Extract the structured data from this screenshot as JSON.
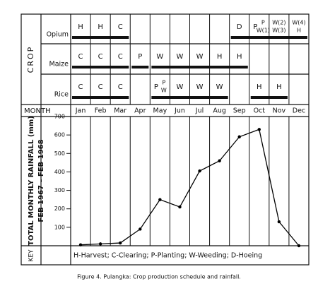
{
  "schedule": {
    "axis_label": "CROP",
    "crops": [
      {
        "name": "Opium",
        "cells": [
          [
            [
              "H"
            ]
          ],
          [
            [
              "H"
            ]
          ],
          [
            [
              "C"
            ]
          ],
          null,
          null,
          null,
          null,
          null,
          [
            [
              "D"
            ]
          ],
          [
            [
              "P"
            ],
            [
              "P",
              "W(1)"
            ]
          ],
          [
            [
              "W(2)",
              "W(3)"
            ]
          ],
          [
            [
              "W(4)",
              "H"
            ]
          ]
        ],
        "bars": [
          [
            "Jan",
            "Mar"
          ],
          [
            "Sep",
            "Dec"
          ]
        ]
      },
      {
        "name": "Maize",
        "cells": [
          [
            [
              "C"
            ]
          ],
          [
            [
              "C"
            ]
          ],
          [
            [
              "C"
            ]
          ],
          [
            [
              "P"
            ]
          ],
          [
            [
              "W"
            ]
          ],
          [
            [
              "W"
            ]
          ],
          [
            [
              "W"
            ]
          ],
          [
            [
              "H"
            ]
          ],
          [
            [
              "H"
            ]
          ],
          null,
          null,
          null
        ],
        "bars": [
          [
            "Jan",
            "Mar"
          ],
          [
            "Apr",
            "Apr"
          ],
          [
            "May",
            "Sep"
          ]
        ]
      },
      {
        "name": "Rice",
        "cells": [
          [
            [
              "C"
            ]
          ],
          [
            [
              "C"
            ]
          ],
          [
            [
              "C"
            ]
          ],
          null,
          [
            [
              "P"
            ],
            [
              "P",
              "W"
            ]
          ],
          [
            [
              "W"
            ]
          ],
          [
            [
              "W"
            ]
          ],
          [
            [
              "W"
            ]
          ],
          null,
          [
            [
              "H"
            ]
          ],
          [
            [
              "H"
            ]
          ],
          null
        ],
        "bars": [
          [
            "Jan",
            "Mar"
          ],
          [
            "May",
            "Aug"
          ],
          [
            "Oct",
            "Nov"
          ]
        ]
      }
    ]
  },
  "chart_data": {
    "type": "line",
    "x_label": "MONTH",
    "y_label": [
      "TOTAL MONTHLY RAINFALL (mm)",
      "FEB 1967 – FEB 1968"
    ],
    "categories": [
      "Jan",
      "Feb",
      "Mar",
      "Apr",
      "May",
      "Jun",
      "Jul",
      "Aug",
      "Sep",
      "Oct",
      "Nov",
      "Dec"
    ],
    "series": [
      {
        "name": "Rainfall",
        "color": "#000000",
        "values": [
          5,
          10,
          15,
          90,
          250,
          210,
          405,
          460,
          590,
          630,
          130,
          0
        ]
      }
    ],
    "ylim": [
      0,
      700
    ],
    "yticks": [
      100,
      200,
      300,
      400,
      500,
      600,
      700
    ]
  },
  "key": {
    "label": "KEY",
    "text": "H-Harvest; C-Clearing; P-Planting; W-Weeding; D-Hoeing"
  },
  "caption": "Figure 4. Pulangka: Crop production schedule and rainfall."
}
